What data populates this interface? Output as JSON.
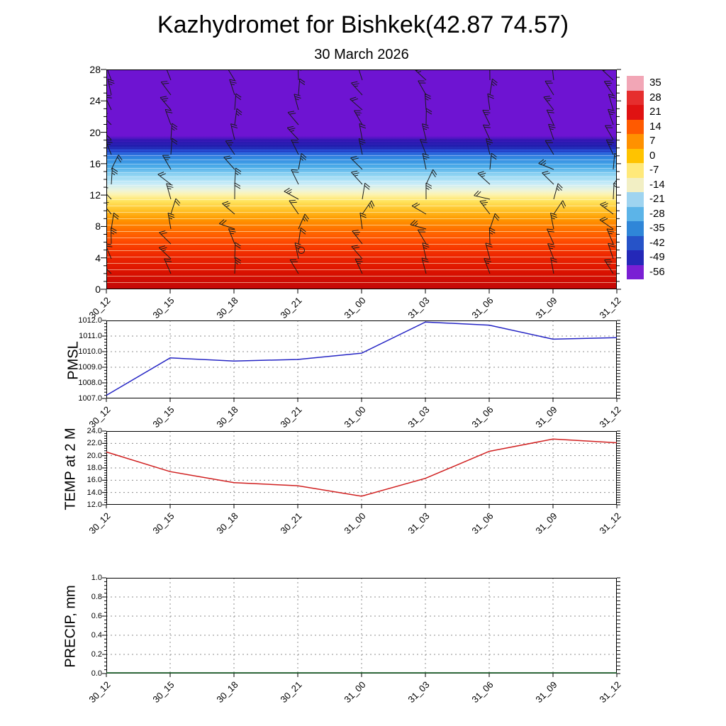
{
  "title": "Kazhydromet for Bishkek(42.87 74.57)",
  "subtitle": "30 March 2026",
  "time_labels": [
    "30_12",
    "30_15",
    "30_18",
    "30_21",
    "31_00",
    "31_03",
    "31_06",
    "31_09",
    "31_12"
  ],
  "colors": {
    "pmsl_line": "#2424c4",
    "temp_line": "#d01f1f",
    "precip_line": "#105c20",
    "grid": "#8c8c8c",
    "axis": "#000000",
    "barb": "#1b1b1b"
  },
  "chart_data": [
    {
      "type": "heatmap",
      "name": "vertical-cross-section",
      "description": "Temperature shading (colorbar, degC) by height and time with wind barbs",
      "x": [
        "30_12",
        "30_15",
        "30_18",
        "30_21",
        "31_00",
        "31_03",
        "31_06",
        "31_09",
        "31_12"
      ],
      "ylim": [
        0,
        28
      ],
      "ylabel_ticks": [
        0,
        4,
        8,
        12,
        16,
        20,
        24,
        28
      ],
      "colorbar_ticks": [
        35,
        28,
        21,
        14,
        7,
        0,
        -7,
        -14,
        -21,
        -28,
        -35,
        -42,
        -49,
        -56
      ],
      "colorbar_colors": [
        "#f2a6b6",
        "#e62e2e",
        "#e01212",
        "#ff5a00",
        "#ff9100",
        "#ffc300",
        "#ffe97a",
        "#f2efc4",
        "#9fd4f0",
        "#5cb4e8",
        "#2f86d8",
        "#2653c8",
        "#2428b8",
        "#7a1fd4"
      ],
      "gradient_stops": [
        [
          "0%",
          "#6e14d2"
        ],
        [
          "30%",
          "#6e14d2"
        ],
        [
          "32%",
          "#3a17b8"
        ],
        [
          "35%",
          "#2222b0"
        ],
        [
          "37%",
          "#2a52d8"
        ],
        [
          "40%",
          "#2f86e0"
        ],
        [
          "44%",
          "#49aae8"
        ],
        [
          "48%",
          "#8fd4f2"
        ],
        [
          "52%",
          "#c8ecf8"
        ],
        [
          "55%",
          "#eef4da"
        ],
        [
          "57%",
          "#fdf3af"
        ],
        [
          "60%",
          "#ffe45e"
        ],
        [
          "64%",
          "#ffc229"
        ],
        [
          "68%",
          "#ff9a00"
        ],
        [
          "73%",
          "#ff7000"
        ],
        [
          "78%",
          "#ff4c00"
        ],
        [
          "85%",
          "#ee2600"
        ],
        [
          "93%",
          "#d81000"
        ],
        [
          "100%",
          "#c40808"
        ]
      ],
      "wind_barbs": {
        "columns": 9,
        "rows": 14,
        "note": "barb pattern not individually legible; drawn schematically"
      },
      "calm_marker": {
        "time": "30_21",
        "level": 5
      }
    },
    {
      "type": "line",
      "name": "PMSL",
      "x": [
        "30_12",
        "30_15",
        "30_18",
        "30_21",
        "31_00",
        "31_03",
        "31_06",
        "31_09",
        "31_12"
      ],
      "values": [
        1007.2,
        1009.6,
        1009.4,
        1009.5,
        1009.9,
        1011.9,
        1011.7,
        1010.8,
        1010.9
      ],
      "ylim": [
        1007.0,
        1012.0
      ],
      "yticks": [
        1007.0,
        1008.0,
        1009.0,
        1010.0,
        1011.0,
        1012.0
      ],
      "color_key": "pmsl_line"
    },
    {
      "type": "line",
      "name": "TEMP at 2 M",
      "x": [
        "30_12",
        "30_15",
        "30_18",
        "30_21",
        "31_00",
        "31_03",
        "31_06",
        "31_09",
        "31_12"
      ],
      "values": [
        20.6,
        17.4,
        15.6,
        15.1,
        13.4,
        16.3,
        20.7,
        22.7,
        22.1
      ],
      "ylim": [
        12.0,
        24.0
      ],
      "yticks": [
        12.0,
        14.0,
        16.0,
        18.0,
        20.0,
        22.0,
        24.0
      ],
      "color_key": "temp_line"
    },
    {
      "type": "line",
      "name": "PRECIP, mm",
      "x": [
        "30_12",
        "30_15",
        "30_18",
        "30_21",
        "31_00",
        "31_03",
        "31_06",
        "31_09",
        "31_12"
      ],
      "values": [
        0.0,
        0.0,
        0.0,
        0.0,
        0.0,
        0.0,
        0.0,
        0.0,
        0.0
      ],
      "ylim": [
        0.0,
        1.0
      ],
      "yticks": [
        0.0,
        0.2,
        0.4,
        0.6,
        0.8,
        1.0
      ],
      "color_key": "precip_line"
    }
  ]
}
